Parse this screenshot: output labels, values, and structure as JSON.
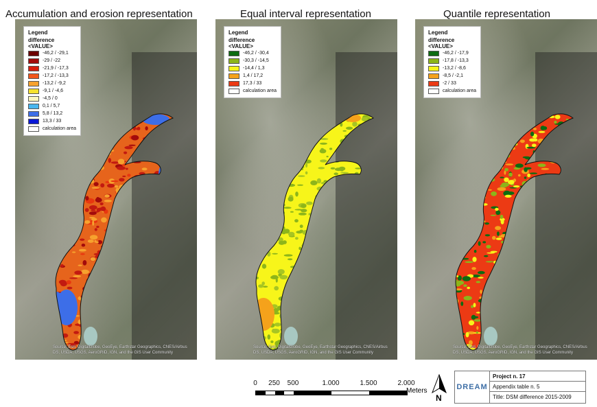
{
  "maps": [
    {
      "title": "Accumulation and erosion representation",
      "legend": {
        "header": "Legend",
        "subheader": "difference",
        "field": "<VALUE>",
        "items": [
          {
            "label": "-46,2 / -29,1",
            "color": "#6b0000"
          },
          {
            "label": "-29 / -22",
            "color": "#a30b0b"
          },
          {
            "label": "-21,9 / -17,3",
            "color": "#d81c0c"
          },
          {
            "label": "-17,2 / -13,3",
            "color": "#f2561b"
          },
          {
            "label": "-13,2 / -9,2",
            "color": "#f7a22e"
          },
          {
            "label": "-9,1 / -4,6",
            "color": "#f6e22e"
          },
          {
            "label": "-4,5 / 0",
            "color": "#fbf6bf"
          },
          {
            "label": "0,1 / 5,7",
            "color": "#49b6ef"
          },
          {
            "label": "5,8 / 13,2",
            "color": "#3d6ee8"
          },
          {
            "label": "13,3 / 33",
            "color": "#0a18d6"
          }
        ],
        "calc_label": "calculation area"
      },
      "attribution": "Source: Esri, DigitalGlobe, GeoEye, Earthstar Geographics, CNES/Airbus DS, USDA, USGS, AeroGRID, IGN, and the GIS User Community"
    },
    {
      "title": "Equal interval representation",
      "legend": {
        "header": "Legend",
        "subheader": "difference",
        "field": "<VALUE>",
        "items": [
          {
            "label": "-46,2 / -30,4",
            "color": "#0d6b11"
          },
          {
            "label": "-30,3 / -14,5",
            "color": "#8db51a"
          },
          {
            "label": "-14,4 / 1,3",
            "color": "#f7f51a"
          },
          {
            "label": "1,4 / 17,2",
            "color": "#f5a21b"
          },
          {
            "label": "17,3 / 33",
            "color": "#ec3a14"
          }
        ],
        "calc_label": "calculation area"
      },
      "attribution": "Source: Esri, DigitalGlobe, GeoEye, Earthstar Geographics, CNES/Airbus DS, USDA, USGS, AeroGRID, IGN, and the GIS User Community"
    },
    {
      "title": "Quantile representation",
      "legend": {
        "header": "Legend",
        "subheader": "difference",
        "field": "<VALUE>",
        "items": [
          {
            "label": "-46,2 / -17,9",
            "color": "#0d6b11"
          },
          {
            "label": "-17,8 / -13,3",
            "color": "#8db51a"
          },
          {
            "label": "-13,2 / -8,6",
            "color": "#f7f51a"
          },
          {
            "label": "-8,5 / -2,1",
            "color": "#f5a21b"
          },
          {
            "label": "-2 / 33",
            "color": "#ec3a14"
          }
        ],
        "calc_label": "calculation area"
      },
      "attribution": "Source: Esri, DigitalGlobe, GeoEye, Earthstar Geographics, CNES/Airbus DS, USDA, USGS, AeroGRID, IGN, and the GIS User Community"
    }
  ],
  "scale": {
    "labels": [
      "0",
      "250",
      "500",
      "1.000",
      "1.500",
      "2.000"
    ],
    "values": [
      0,
      250,
      500,
      1000,
      1500,
      2000
    ],
    "unit": "Meters"
  },
  "north_label": "N",
  "info": {
    "logo": "DREAM",
    "project": "Project n. 17",
    "appendix": "Appendix table n. 5",
    "title": "Title: DSM difference 2015-2009"
  }
}
